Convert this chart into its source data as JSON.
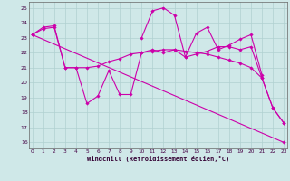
{
  "background_color": "#cfe8e8",
  "grid_color": "#b0d0d0",
  "line_color": "#cc00aa",
  "xlim": [
    -0.3,
    23.3
  ],
  "ylim": [
    15.6,
    25.4
  ],
  "xticks": [
    0,
    1,
    2,
    3,
    4,
    5,
    6,
    7,
    8,
    9,
    10,
    11,
    12,
    13,
    14,
    15,
    16,
    17,
    18,
    19,
    20,
    21,
    22,
    23
  ],
  "yticks": [
    16,
    17,
    18,
    19,
    20,
    21,
    22,
    23,
    24,
    25
  ],
  "xlabel": "Windchill (Refroidissement éolien,°C)",
  "series": [
    {
      "x": [
        0,
        1,
        2,
        3,
        4,
        5,
        6,
        7,
        8,
        9,
        10,
        11,
        12,
        13,
        14,
        15,
        16,
        17,
        18,
        19,
        20,
        21,
        22,
        23
      ],
      "y": [
        23.2,
        23.7,
        23.8,
        21.0,
        21.0,
        18.6,
        19.1,
        20.8,
        19.2,
        19.2,
        22.0,
        22.2,
        22.0,
        22.2,
        21.7,
        21.9,
        22.1,
        22.4,
        22.4,
        22.2,
        22.4,
        20.3,
        18.3,
        17.3
      ]
    },
    {
      "x": [
        0,
        1,
        2,
        3,
        4,
        5,
        6,
        7,
        8,
        9,
        10,
        11,
        12,
        13,
        14,
        15,
        16,
        17,
        18,
        19,
        20,
        21,
        22,
        23
      ],
      "y": [
        23.2,
        23.6,
        23.7,
        21.0,
        21.0,
        21.0,
        21.1,
        21.4,
        21.6,
        21.9,
        22.0,
        22.1,
        22.2,
        22.2,
        22.1,
        22.0,
        21.9,
        21.7,
        21.5,
        21.3,
        21.0,
        20.3,
        18.3,
        17.3
      ]
    },
    {
      "x": [
        0,
        23
      ],
      "y": [
        23.2,
        16.0
      ]
    },
    {
      "x": [
        10,
        11,
        12,
        13,
        14,
        15,
        16,
        17,
        18,
        19,
        20,
        21
      ],
      "y": [
        23.0,
        24.8,
        25.0,
        24.5,
        21.7,
        23.3,
        23.7,
        22.2,
        22.5,
        22.9,
        23.2,
        20.5
      ]
    }
  ]
}
